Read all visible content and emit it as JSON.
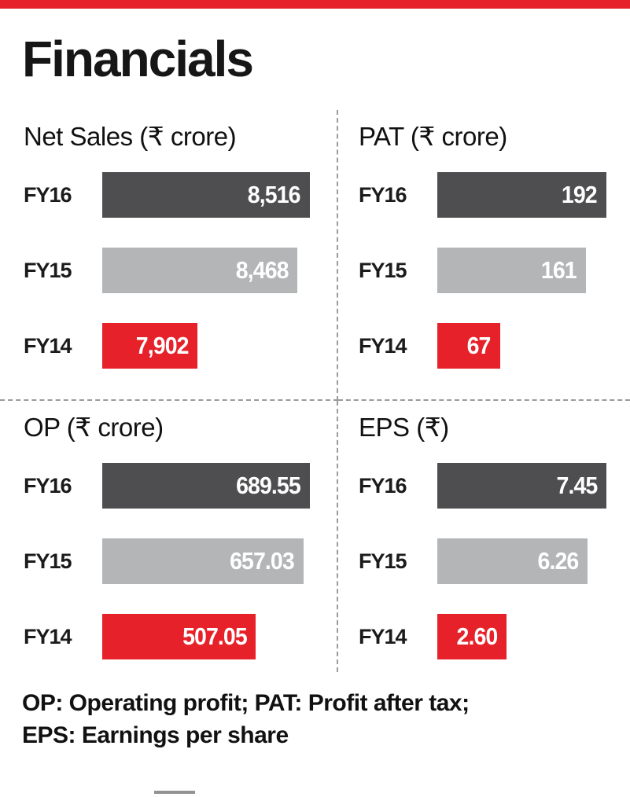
{
  "page": {
    "title": "Financials",
    "footnote": [
      "OP: Operating profit; PAT: Profit after tax;",
      "EPS: Earnings per share"
    ]
  },
  "colors": {
    "fy16_bar": "#4e4e50",
    "fy15_bar": "#b3b5b7",
    "fy14_bar": "#e62129",
    "top_strip": "#e62129",
    "divider": "#9a9a9a",
    "text": "#111111",
    "bar_value_text": "#ffffff"
  },
  "chart_data": {
    "type": "bar",
    "orientation": "horizontal",
    "grid": false,
    "legend": "none",
    "categories": [
      "FY16",
      "FY15",
      "FY14"
    ],
    "panels": [
      {
        "title": "Net Sales (₹ crore)",
        "values": [
          8516,
          8468,
          7902
        ],
        "value_labels": [
          "8,516",
          "8,468",
          "7,902"
        ],
        "bar_widths_pct": [
          100,
          94,
          46
        ]
      },
      {
        "title": "PAT (₹ crore)",
        "values": [
          192,
          161,
          67
        ],
        "value_labels": [
          "192",
          "161",
          "67"
        ],
        "bar_widths_pct": [
          100,
          88,
          37
        ]
      },
      {
        "title": "OP (₹ crore)",
        "values": [
          689.55,
          657.03,
          507.05
        ],
        "value_labels": [
          "689.55",
          "657.03",
          "507.05"
        ],
        "bar_widths_pct": [
          100,
          97,
          74
        ]
      },
      {
        "title": "EPS (₹)",
        "values": [
          7.45,
          6.26,
          2.6
        ],
        "value_labels": [
          "7.45",
          "6.26",
          "2.60"
        ],
        "bar_widths_pct": [
          100,
          89,
          41
        ]
      }
    ]
  }
}
